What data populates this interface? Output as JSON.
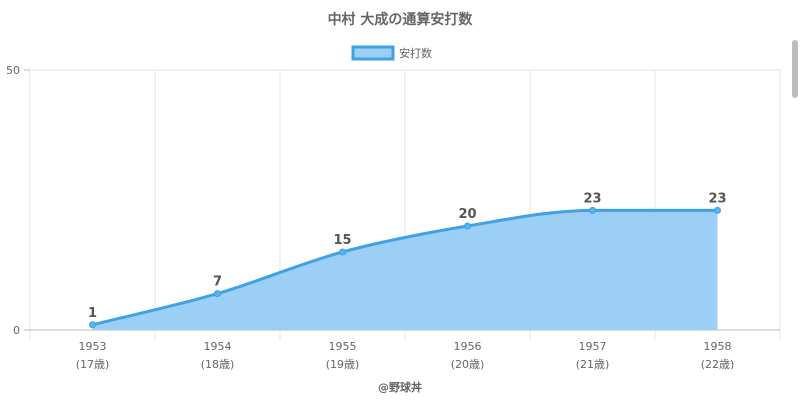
{
  "chart_data": {
    "type": "area",
    "title": "中村 大成の通算安打数",
    "categories": [
      "1953",
      "1954",
      "1955",
      "1956",
      "1957",
      "1958"
    ],
    "sublabels": [
      "(17歳)",
      "(18歳)",
      "(19歳)",
      "(20歳)",
      "(21歳)",
      "(22歳)"
    ],
    "series": [
      {
        "name": "安打数",
        "values": [
          1,
          7,
          15,
          20,
          23,
          23
        ]
      }
    ],
    "ylim": [
      0,
      50
    ],
    "yticks": [
      "0",
      "50"
    ],
    "grid": true,
    "legend": "top-center",
    "colors": {
      "line": "#3fa1e6",
      "fill": "#9ccff5",
      "point": "#58b2ee"
    }
  },
  "credit": "@野球丼"
}
